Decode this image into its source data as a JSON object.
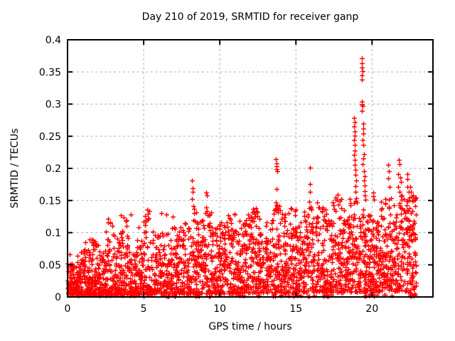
{
  "chart_data": {
    "type": "scatter",
    "title": "Day 210 of 2019, SRMTID for receiver ganp",
    "xlabel": "GPS time / hours",
    "ylabel": "SRMTID / TECUs",
    "xlim": [
      0,
      24
    ],
    "ylim": [
      0,
      0.4
    ],
    "xticks": [
      {
        "v": 0,
        "label": "0"
      },
      {
        "v": 5,
        "label": "5"
      },
      {
        "v": 10,
        "label": "10"
      },
      {
        "v": 15,
        "label": "15"
      },
      {
        "v": 20,
        "label": "20"
      }
    ],
    "yticks": [
      {
        "v": 0,
        "label": "0"
      },
      {
        "v": 0.05,
        "label": "0.05"
      },
      {
        "v": 0.1,
        "label": "0.1"
      },
      {
        "v": 0.15,
        "label": "0.15"
      },
      {
        "v": 0.2,
        "label": "0.2"
      },
      {
        "v": 0.25,
        "label": "0.25"
      },
      {
        "v": 0.3,
        "label": "0.3"
      },
      {
        "v": 0.35,
        "label": "0.35"
      },
      {
        "v": 0.4,
        "label": "0.4"
      }
    ],
    "grid": true,
    "legend": null,
    "marker": "plus",
    "colors": {
      "points": "#ff0000",
      "grid": "#b0b0b0",
      "axis": "#000000",
      "background": "#ffffff"
    },
    "data_span_hours": [
      0,
      22.9
    ],
    "seed": 20190210,
    "baseline_bins": [
      [
        0.0,
        0.5,
        70,
        0.004,
        0.055,
        2.0
      ],
      [
        0.5,
        1.0,
        70,
        0.004,
        0.07,
        2.0
      ],
      [
        1.0,
        1.5,
        65,
        0.004,
        0.08,
        2.0
      ],
      [
        1.5,
        2.0,
        65,
        0.004,
        0.09,
        2.0
      ],
      [
        2.0,
        2.5,
        60,
        0.004,
        0.075,
        1.9
      ],
      [
        2.5,
        3.0,
        60,
        0.004,
        0.12,
        2.0
      ],
      [
        3.0,
        3.5,
        60,
        0.004,
        0.1,
        1.9
      ],
      [
        3.5,
        4.0,
        60,
        0.004,
        0.128,
        2.1
      ],
      [
        4.0,
        4.5,
        55,
        0.004,
        0.07,
        1.8
      ],
      [
        4.5,
        5.0,
        55,
        0.004,
        0.09,
        1.8
      ],
      [
        5.0,
        5.5,
        58,
        0.004,
        0.135,
        2.0
      ],
      [
        5.5,
        6.0,
        58,
        0.004,
        0.11,
        1.8
      ],
      [
        6.0,
        6.5,
        58,
        0.005,
        0.1,
        1.7
      ],
      [
        6.5,
        7.0,
        58,
        0.005,
        0.125,
        1.8
      ],
      [
        7.0,
        7.5,
        60,
        0.005,
        0.11,
        1.7
      ],
      [
        7.5,
        8.0,
        60,
        0.005,
        0.115,
        1.7
      ],
      [
        8.0,
        8.5,
        60,
        0.005,
        0.14,
        1.7
      ],
      [
        8.5,
        9.0,
        60,
        0.005,
        0.12,
        1.6
      ],
      [
        9.0,
        9.5,
        60,
        0.005,
        0.13,
        1.6
      ],
      [
        9.5,
        10.0,
        60,
        0.005,
        0.11,
        1.6
      ],
      [
        10.0,
        10.5,
        60,
        0.005,
        0.12,
        1.6
      ],
      [
        10.5,
        11.0,
        60,
        0.005,
        0.13,
        1.6
      ],
      [
        11.0,
        11.5,
        60,
        0.006,
        0.11,
        1.55
      ],
      [
        11.5,
        12.0,
        60,
        0.006,
        0.13,
        1.55
      ],
      [
        12.0,
        12.5,
        60,
        0.006,
        0.14,
        1.5
      ],
      [
        12.5,
        13.0,
        60,
        0.006,
        0.11,
        1.5
      ],
      [
        13.0,
        13.5,
        60,
        0.006,
        0.12,
        1.5
      ],
      [
        13.5,
        14.0,
        60,
        0.006,
        0.145,
        1.5
      ],
      [
        14.0,
        14.5,
        60,
        0.006,
        0.13,
        1.5
      ],
      [
        14.5,
        15.0,
        60,
        0.006,
        0.14,
        1.5
      ],
      [
        15.0,
        15.5,
        60,
        0.007,
        0.12,
        1.45
      ],
      [
        15.5,
        16.0,
        60,
        0.007,
        0.14,
        1.45
      ],
      [
        16.0,
        16.5,
        60,
        0.007,
        0.135,
        1.45
      ],
      [
        16.5,
        17.0,
        60,
        0.007,
        0.14,
        1.45
      ],
      [
        17.0,
        17.5,
        60,
        0.007,
        0.12,
        1.45
      ],
      [
        17.5,
        18.0,
        60,
        0.007,
        0.155,
        1.45
      ],
      [
        18.0,
        18.5,
        62,
        0.007,
        0.13,
        1.4
      ],
      [
        18.5,
        19.0,
        62,
        0.008,
        0.15,
        1.4
      ],
      [
        19.0,
        19.5,
        62,
        0.008,
        0.15,
        1.4
      ],
      [
        19.5,
        20.0,
        62,
        0.008,
        0.13,
        1.4
      ],
      [
        20.0,
        20.5,
        62,
        0.008,
        0.12,
        1.4
      ],
      [
        20.5,
        21.0,
        62,
        0.008,
        0.15,
        1.4
      ],
      [
        21.0,
        21.5,
        62,
        0.008,
        0.155,
        1.4
      ],
      [
        21.5,
        22.0,
        62,
        0.008,
        0.16,
        1.4
      ],
      [
        22.0,
        22.5,
        62,
        0.008,
        0.15,
        1.4
      ],
      [
        22.5,
        22.88,
        55,
        0.006,
        0.155,
        1.5
      ]
    ],
    "near_zero_x": [
      0.3,
      0.7,
      1.1,
      1.35,
      1.7,
      2.0,
      2.1,
      2.3,
      2.5,
      2.8,
      3.1,
      3.3,
      3.6,
      4.1,
      4.4,
      4.6,
      5.0,
      5.3,
      6.3,
      6.37,
      6.5,
      6.57,
      6.63,
      7.0,
      7.06,
      8.4,
      8.5,
      8.56,
      8.62,
      8.68,
      9.3,
      9.36,
      10.8,
      11.2,
      11.3,
      11.5,
      11.56,
      12.5,
      12.56,
      13.5,
      13.56,
      13.62,
      14.0,
      14.06,
      14.5,
      14.8,
      14.86,
      15.0,
      15.06,
      15.12,
      15.3,
      15.8,
      15.86,
      16.2,
      16.8,
      16.86,
      17.0,
      17.06,
      17.12,
      17.3,
      19.5,
      19.56,
      19.62,
      19.8,
      19.86,
      20.0,
      20.06,
      20.12,
      20.3,
      20.8,
      20.86,
      21.3,
      22.5,
      22.56,
      22.62,
      22.7,
      22.76,
      22.82
    ],
    "outliers": [
      [
        0.15,
        0.066
      ],
      [
        1.15,
        0.085
      ],
      [
        1.45,
        0.09
      ],
      [
        1.7,
        0.088
      ],
      [
        2.65,
        0.122
      ],
      [
        2.68,
        0.116
      ],
      [
        3.52,
        0.127
      ],
      [
        4.15,
        0.128
      ],
      [
        4.67,
        0.108
      ],
      [
        5.25,
        0.136
      ],
      [
        5.28,
        0.129
      ],
      [
        6.15,
        0.13
      ],
      [
        6.5,
        0.128
      ],
      [
        6.92,
        0.125
      ],
      [
        8.18,
        0.181
      ],
      [
        8.21,
        0.169
      ],
      [
        8.23,
        0.164
      ],
      [
        8.19,
        0.152
      ],
      [
        8.25,
        0.141
      ],
      [
        8.31,
        0.137
      ],
      [
        9.1,
        0.162
      ],
      [
        9.13,
        0.158
      ],
      [
        9.11,
        0.139
      ],
      [
        9.16,
        0.134
      ],
      [
        9.2,
        0.127
      ],
      [
        9.45,
        0.131
      ],
      [
        10.55,
        0.127
      ],
      [
        11.3,
        0.118
      ],
      [
        11.85,
        0.128
      ],
      [
        12.15,
        0.132
      ],
      [
        12.35,
        0.125
      ],
      [
        12.6,
        0.121
      ],
      [
        13.7,
        0.214
      ],
      [
        13.72,
        0.208
      ],
      [
        13.74,
        0.203
      ],
      [
        13.71,
        0.199
      ],
      [
        13.76,
        0.196
      ],
      [
        13.73,
        0.168
      ],
      [
        13.7,
        0.147
      ],
      [
        13.75,
        0.142
      ],
      [
        13.8,
        0.138
      ],
      [
        14.65,
        0.138
      ],
      [
        14.95,
        0.134
      ],
      [
        15.93,
        0.201
      ],
      [
        15.9,
        0.176
      ],
      [
        15.94,
        0.163
      ],
      [
        15.89,
        0.148
      ],
      [
        15.95,
        0.14
      ],
      [
        16.0,
        0.136
      ],
      [
        16.4,
        0.147
      ],
      [
        16.55,
        0.139
      ],
      [
        17.4,
        0.147
      ],
      [
        17.46,
        0.142
      ],
      [
        17.75,
        0.159
      ],
      [
        17.8,
        0.144
      ],
      [
        17.9,
        0.149
      ],
      [
        18.15,
        0.135
      ],
      [
        18.55,
        0.152
      ],
      [
        18.83,
        0.279
      ],
      [
        18.85,
        0.272
      ],
      [
        18.84,
        0.265
      ],
      [
        18.86,
        0.258
      ],
      [
        18.85,
        0.251
      ],
      [
        18.83,
        0.244
      ],
      [
        18.87,
        0.236
      ],
      [
        18.85,
        0.228
      ],
      [
        18.84,
        0.221
      ],
      [
        18.86,
        0.213
      ],
      [
        18.88,
        0.206
      ],
      [
        18.9,
        0.198
      ],
      [
        18.92,
        0.19
      ],
      [
        18.95,
        0.181
      ],
      [
        18.9,
        0.172
      ],
      [
        18.93,
        0.163
      ],
      [
        18.97,
        0.154
      ],
      [
        19.0,
        0.147
      ],
      [
        19.33,
        0.371
      ],
      [
        19.35,
        0.364
      ],
      [
        19.34,
        0.357
      ],
      [
        19.36,
        0.351
      ],
      [
        19.34,
        0.345
      ],
      [
        19.33,
        0.338
      ],
      [
        19.35,
        0.304
      ],
      [
        19.34,
        0.3
      ],
      [
        19.36,
        0.297
      ],
      [
        19.35,
        0.289
      ],
      [
        19.42,
        0.27
      ],
      [
        19.44,
        0.262
      ],
      [
        19.41,
        0.254
      ],
      [
        19.39,
        0.244
      ],
      [
        19.41,
        0.236
      ],
      [
        19.46,
        0.222
      ],
      [
        19.43,
        0.215
      ],
      [
        19.4,
        0.207
      ],
      [
        19.46,
        0.196
      ],
      [
        19.5,
        0.188
      ],
      [
        19.48,
        0.181
      ],
      [
        19.51,
        0.173
      ],
      [
        19.53,
        0.165
      ],
      [
        19.5,
        0.158
      ],
      [
        19.56,
        0.151
      ],
      [
        20.08,
        0.162
      ],
      [
        20.1,
        0.157
      ],
      [
        20.13,
        0.151
      ],
      [
        20.6,
        0.148
      ],
      [
        20.85,
        0.152
      ],
      [
        21.06,
        0.205
      ],
      [
        21.09,
        0.196
      ],
      [
        21.05,
        0.184
      ],
      [
        21.15,
        0.171
      ],
      [
        21.75,
        0.213
      ],
      [
        21.8,
        0.207
      ],
      [
        21.7,
        0.191
      ],
      [
        21.85,
        0.186
      ],
      [
        21.9,
        0.179
      ],
      [
        21.72,
        0.171
      ],
      [
        21.82,
        0.164
      ],
      [
        21.92,
        0.157
      ],
      [
        22.1,
        0.152
      ],
      [
        22.3,
        0.191
      ],
      [
        22.34,
        0.183
      ],
      [
        22.3,
        0.171
      ],
      [
        22.4,
        0.164
      ],
      [
        22.45,
        0.155
      ],
      [
        22.52,
        0.171
      ],
      [
        22.56,
        0.164
      ],
      [
        22.6,
        0.156
      ],
      [
        22.66,
        0.149
      ],
      [
        22.7,
        0.158
      ],
      [
        22.75,
        0.15
      ]
    ]
  }
}
